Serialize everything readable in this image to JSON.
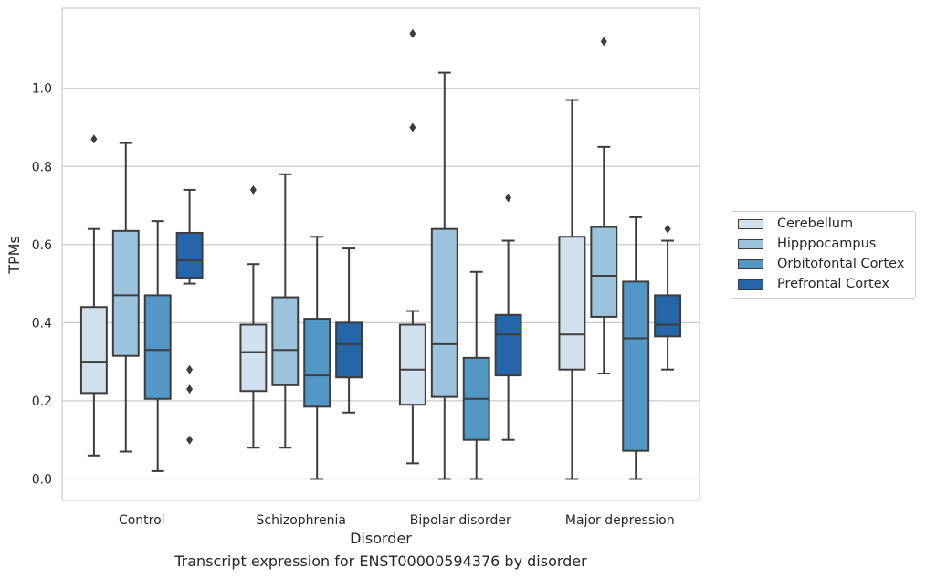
{
  "chart_data": {
    "type": "box",
    "xlabel": "Disorder",
    "ylabel": "TPMs",
    "ylim": [
      -0.055,
      1.205
    ],
    "yticks": [
      "0.0",
      "0.2",
      "0.4",
      "0.6",
      "0.8",
      "1.0"
    ],
    "grid": "horizontal",
    "legend_position": "right",
    "categories": [
      "Control",
      "Schizophrenia",
      "Bipolar disorder",
      "Major depression"
    ],
    "series": [
      {
        "name": "Cerebellum",
        "color": "#d1e0ef",
        "boxes": [
          {
            "whislo": 0.06,
            "q1": 0.22,
            "med": 0.3,
            "q3": 0.44,
            "whishi": 0.64,
            "fliers": [
              0.87
            ]
          },
          {
            "whislo": 0.08,
            "q1": 0.225,
            "med": 0.325,
            "q3": 0.395,
            "whishi": 0.55,
            "fliers": [
              0.74
            ]
          },
          {
            "whislo": 0.04,
            "q1": 0.19,
            "med": 0.28,
            "q3": 0.395,
            "whishi": 0.43,
            "fliers": [
              0.9,
              1.14
            ]
          },
          {
            "whislo": 0.0,
            "q1": 0.28,
            "med": 0.37,
            "q3": 0.62,
            "whishi": 0.97,
            "fliers": []
          }
        ]
      },
      {
        "name": "Hipppocampus",
        "color": "#9bc3db",
        "boxes": [
          {
            "whislo": 0.07,
            "q1": 0.315,
            "med": 0.47,
            "q3": 0.635,
            "whishi": 0.86,
            "fliers": []
          },
          {
            "whislo": 0.08,
            "q1": 0.24,
            "med": 0.33,
            "q3": 0.465,
            "whishi": 0.78,
            "fliers": []
          },
          {
            "whislo": 0.0,
            "q1": 0.21,
            "med": 0.345,
            "q3": 0.64,
            "whishi": 1.04,
            "fliers": []
          },
          {
            "whislo": 0.27,
            "q1": 0.415,
            "med": 0.52,
            "q3": 0.645,
            "whishi": 0.85,
            "fliers": [
              1.12
            ]
          }
        ]
      },
      {
        "name": "Orbitofontal Cortex",
        "color": "#5397c6",
        "boxes": [
          {
            "whislo": 0.02,
            "q1": 0.205,
            "med": 0.33,
            "q3": 0.47,
            "whishi": 0.66,
            "fliers": []
          },
          {
            "whislo": 0.0,
            "q1": 0.185,
            "med": 0.265,
            "q3": 0.41,
            "whishi": 0.62,
            "fliers": []
          },
          {
            "whislo": 0.0,
            "q1": 0.1,
            "med": 0.205,
            "q3": 0.31,
            "whishi": 0.53,
            "fliers": []
          },
          {
            "whislo": 0.0,
            "q1": 0.072,
            "med": 0.36,
            "q3": 0.505,
            "whishi": 0.67,
            "fliers": []
          }
        ]
      },
      {
        "name": "Prefrontal Cortex",
        "color": "#2466a9",
        "boxes": [
          {
            "whislo": 0.5,
            "q1": 0.515,
            "med": 0.56,
            "q3": 0.63,
            "whishi": 0.74,
            "fliers": [
              0.28,
              0.23,
              0.1
            ]
          },
          {
            "whislo": 0.17,
            "q1": 0.26,
            "med": 0.345,
            "q3": 0.4,
            "whishi": 0.59,
            "fliers": []
          },
          {
            "whislo": 0.1,
            "q1": 0.265,
            "med": 0.37,
            "q3": 0.42,
            "whishi": 0.61,
            "fliers": [
              0.72
            ]
          },
          {
            "whislo": 0.28,
            "q1": 0.365,
            "med": 0.395,
            "q3": 0.47,
            "whishi": 0.61,
            "fliers": [
              0.64
            ]
          }
        ]
      }
    ]
  },
  "caption": "Transcript expression for ENST00000594376 by disorder"
}
